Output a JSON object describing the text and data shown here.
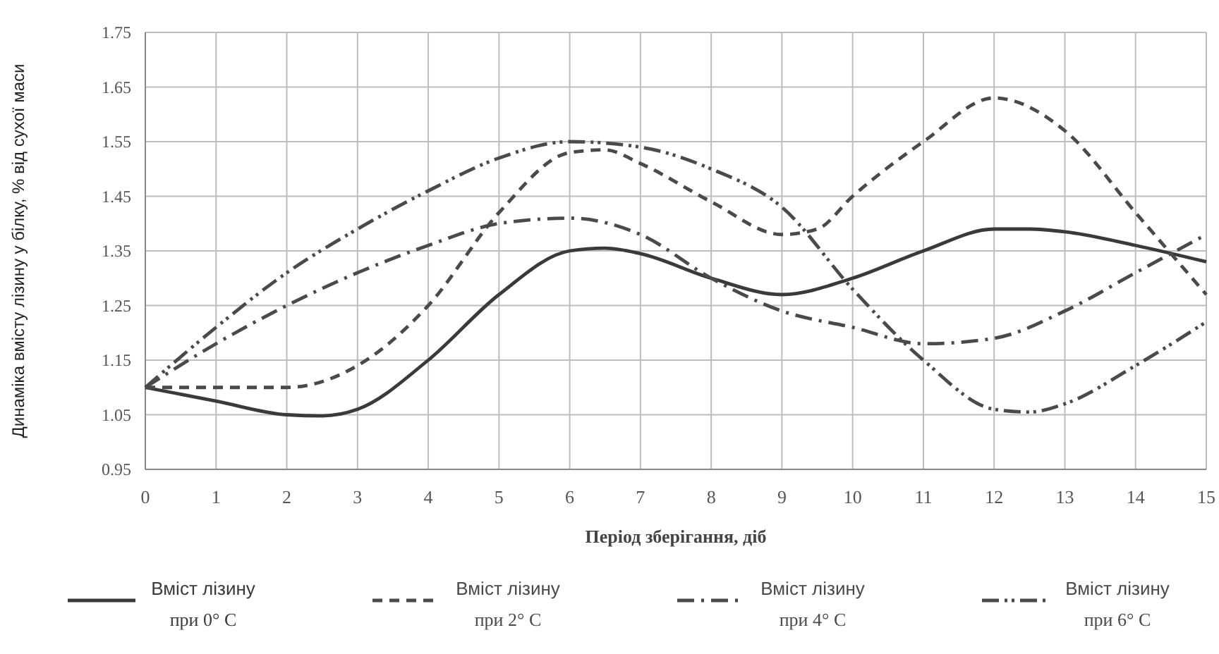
{
  "chart_data": {
    "type": "line",
    "xlabel": "Період зберігання, діб",
    "ylabel": "Динаміка вмісту лізину у білку, % від сухої маси",
    "xlim": [
      0,
      15
    ],
    "xticks": [
      0,
      1,
      2,
      3,
      4,
      5,
      6,
      7,
      8,
      9,
      10,
      11,
      12,
      13,
      14,
      15
    ],
    "ylim": [
      0.95,
      1.75
    ],
    "yticks": [
      0.95,
      1.05,
      1.15,
      1.25,
      1.35,
      1.45,
      1.55,
      1.65,
      1.75
    ],
    "grid": true,
    "legend": "bottom",
    "marker": "none",
    "series": [
      {
        "name": "Вміст лізину при 0° C",
        "color": "#3a3a3a",
        "line_style": "solid",
        "x": [
          0,
          1,
          2,
          2.5,
          3,
          4,
          5,
          6,
          6.5,
          7,
          8,
          9,
          10,
          11,
          12,
          12.5,
          13,
          14,
          15
        ],
        "values": [
          1.1,
          1.075,
          1.05,
          1.048,
          1.06,
          1.15,
          1.27,
          1.35,
          1.355,
          1.345,
          1.3,
          1.27,
          1.3,
          1.35,
          1.39,
          1.39,
          1.385,
          1.36,
          1.33
        ]
      },
      {
        "name": "Вміст лізину при 2° C",
        "color": "#4a4a4a",
        "line_style": "dashed",
        "x": [
          0,
          1,
          2,
          3,
          4,
          5,
          6,
          6.5,
          7,
          8,
          9,
          9.5,
          10,
          11,
          12,
          13,
          14,
          15
        ],
        "values": [
          1.1,
          1.1,
          1.1,
          1.14,
          1.25,
          1.42,
          1.53,
          1.535,
          1.51,
          1.44,
          1.38,
          1.39,
          1.45,
          1.55,
          1.63,
          1.57,
          1.42,
          1.27
        ]
      },
      {
        "name": "Вміст лізину при 4° C",
        "color": "#4a4a4a",
        "line_style": "dashdot",
        "x": [
          0,
          1,
          2,
          3,
          4,
          5,
          6,
          7,
          8,
          9,
          10,
          11,
          12,
          13,
          14,
          15
        ],
        "values": [
          1.1,
          1.18,
          1.25,
          1.31,
          1.36,
          1.4,
          1.41,
          1.38,
          1.3,
          1.24,
          1.21,
          1.18,
          1.19,
          1.24,
          1.31,
          1.38
        ]
      },
      {
        "name": "Вміст лізину при 6° C",
        "color": "#4a4a4a",
        "line_style": "dashdotdot",
        "x": [
          0,
          1,
          2,
          3,
          4,
          5,
          6,
          7,
          8,
          9,
          10,
          11,
          12,
          12.5,
          13,
          14,
          15
        ],
        "values": [
          1.1,
          1.21,
          1.31,
          1.39,
          1.46,
          1.52,
          1.55,
          1.54,
          1.5,
          1.43,
          1.28,
          1.15,
          1.06,
          1.055,
          1.07,
          1.14,
          1.22
        ]
      }
    ]
  }
}
